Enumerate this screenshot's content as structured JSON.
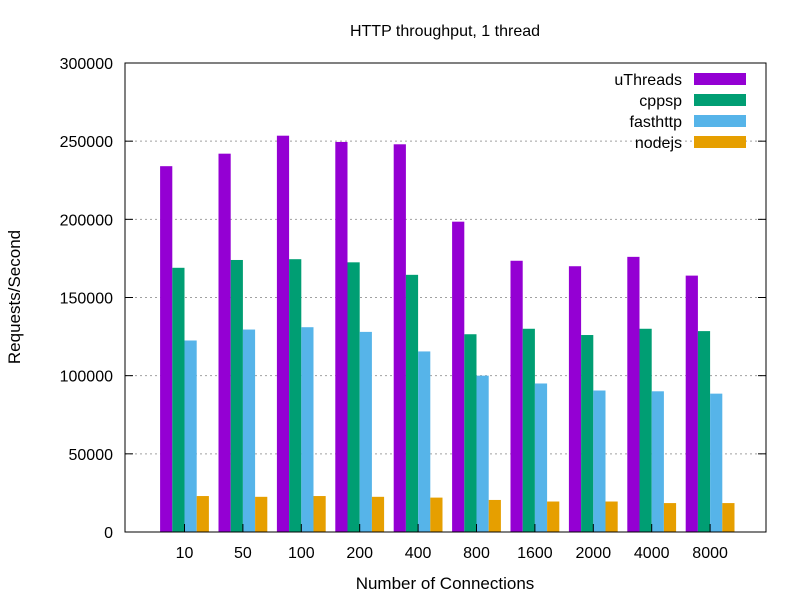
{
  "chart_data": {
    "type": "bar",
    "title": "HTTP throughput, 1 thread",
    "xlabel": "Number of Connections",
    "ylabel": "Requests/Second",
    "ylim": [
      0,
      300000
    ],
    "yticks": [
      0,
      50000,
      100000,
      150000,
      200000,
      250000,
      300000
    ],
    "grid": true,
    "legend_position": "top-right",
    "categories": [
      "10",
      "50",
      "100",
      "200",
      "400",
      "800",
      "1600",
      "2000",
      "4000",
      "8000"
    ],
    "series": [
      {
        "name": "uThreads",
        "color": "#9400d3",
        "values": [
          234000,
          242000,
          253500,
          249500,
          248000,
          198500,
          173500,
          170000,
          176000,
          164000
        ]
      },
      {
        "name": "cppsp",
        "color": "#009e73",
        "values": [
          169000,
          174000,
          174500,
          172500,
          164500,
          126500,
          130000,
          126000,
          130000,
          128500
        ]
      },
      {
        "name": "fasthttp",
        "color": "#56b4e9",
        "values": [
          122500,
          129500,
          131000,
          128000,
          115500,
          100000,
          95000,
          90500,
          90000,
          88500
        ]
      },
      {
        "name": "nodejs",
        "color": "#e69f00",
        "values": [
          23000,
          22500,
          23000,
          22500,
          22000,
          20500,
          19500,
          19500,
          18500,
          18500
        ]
      }
    ]
  }
}
